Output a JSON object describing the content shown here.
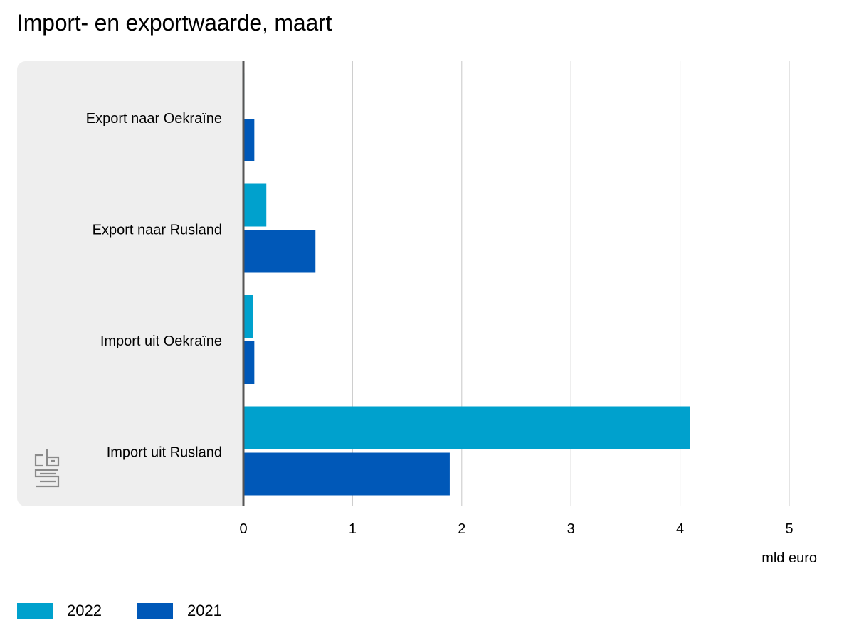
{
  "title": "Import- en exportwaarde, maart",
  "logo": {
    "icon": "cbs-logo",
    "text": "cbs"
  },
  "chart_data": {
    "type": "bar",
    "orientation": "horizontal",
    "title": "Import- en exportwaarde, maart",
    "categories": [
      "Export naar Oekraïne",
      "Export naar Rusland",
      "Import uit Oekraïne",
      "Import uit Rusland"
    ],
    "series": [
      {
        "name": "2022",
        "color": "#00a1cd",
        "values": [
          0.01,
          0.21,
          0.09,
          4.09
        ]
      },
      {
        "name": "2021",
        "color": "#0058b8",
        "values": [
          0.1,
          0.66,
          0.1,
          1.89
        ]
      }
    ],
    "xlim": [
      0,
      5
    ],
    "xticks": [
      "0",
      "1",
      "2",
      "3",
      "4",
      "5"
    ],
    "xlabel": "mld euro",
    "ylabel": "",
    "grid": true,
    "legend_position": "bottom-left"
  }
}
